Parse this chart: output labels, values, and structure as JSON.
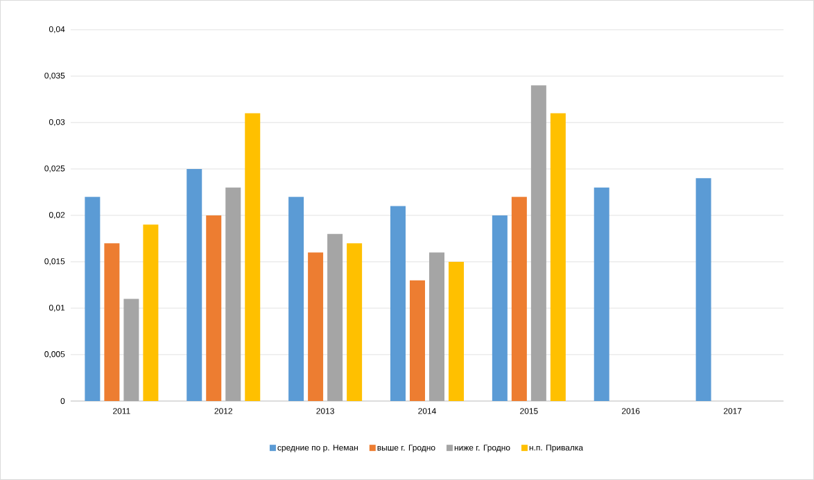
{
  "chart_data": {
    "type": "bar",
    "categories": [
      "2011",
      "2012",
      "2013",
      "2014",
      "2015",
      "2016",
      "2017"
    ],
    "series": [
      {
        "name": "средние по р. Неман",
        "color": "#5b9bd5",
        "values": [
          0.022,
          0.025,
          0.022,
          0.021,
          0.02,
          0.023,
          0.024
        ]
      },
      {
        "name": "выше г. Гродно",
        "color": "#ed7d31",
        "values": [
          0.017,
          0.02,
          0.016,
          0.013,
          0.022,
          null,
          null
        ]
      },
      {
        "name": "ниже г. Гродно",
        "color": "#a5a5a5",
        "values": [
          0.011,
          0.023,
          0.018,
          0.016,
          0.034,
          null,
          null
        ]
      },
      {
        "name": "н.п. Привалка",
        "color": "#ffc000",
        "values": [
          0.019,
          0.031,
          0.017,
          0.015,
          0.031,
          null,
          null
        ]
      }
    ],
    "ylim": [
      0,
      0.04
    ],
    "yticks": [
      0,
      {
        "value": 0.005,
        "label": "0,005"
      },
      {
        "value": 0.01,
        "label": "0,01"
      },
      {
        "value": 0.015,
        "label": "0,015"
      },
      {
        "value": 0.02,
        "label": "0,02"
      },
      {
        "value": 0.025,
        "label": "0,025"
      },
      {
        "value": 0.03,
        "label": "0,03"
      },
      {
        "value": 0.035,
        "label": "0,035"
      },
      {
        "value": 0.04,
        "label": "0,04"
      }
    ],
    "grid": "y",
    "legend": "bottom"
  }
}
